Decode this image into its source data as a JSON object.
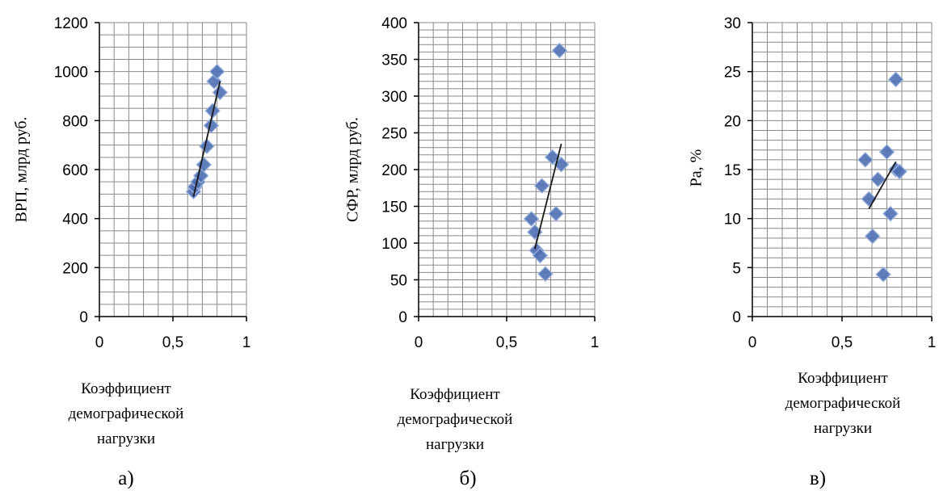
{
  "chart_data": [
    {
      "type": "scatter",
      "panel_label": "а)",
      "ylabel": "ВРП, млрд руб.",
      "xlabel": [
        "Коэффициент",
        "демографической",
        "нагрузки"
      ],
      "xlim": [
        0,
        1
      ],
      "ylim": [
        0,
        1200
      ],
      "xticks": [
        0,
        0.5,
        1
      ],
      "xtick_labels": [
        "0",
        "0,5",
        "1"
      ],
      "yticks": [
        0,
        200,
        400,
        600,
        800,
        1000,
        1200
      ],
      "ytick_labels": [
        "0",
        "200",
        "400",
        "600",
        "800",
        "1000",
        "1200"
      ],
      "grid": true,
      "points": [
        {
          "x": 0.64,
          "y": 510
        },
        {
          "x": 0.65,
          "y": 530
        },
        {
          "x": 0.67,
          "y": 550
        },
        {
          "x": 0.69,
          "y": 575
        },
        {
          "x": 0.71,
          "y": 620
        },
        {
          "x": 0.73,
          "y": 695
        },
        {
          "x": 0.76,
          "y": 780
        },
        {
          "x": 0.77,
          "y": 840
        },
        {
          "x": 0.78,
          "y": 960
        },
        {
          "x": 0.8,
          "y": 1000
        },
        {
          "x": 0.82,
          "y": 915
        }
      ],
      "trendline": [
        {
          "x": 0.64,
          "y": 490
        },
        {
          "x": 0.82,
          "y": 960
        }
      ],
      "marker_color": "#4f6fb5",
      "trend_color": "#1a1a1a"
    },
    {
      "type": "scatter",
      "panel_label": "б)",
      "ylabel": "СФР, млрд руб.",
      "xlabel": [
        "Коэффициент",
        "демографической",
        "нагрузки"
      ],
      "xlim": [
        0,
        1
      ],
      "ylim": [
        0,
        400
      ],
      "xticks": [
        0,
        0.5,
        1
      ],
      "xtick_labels": [
        "0",
        "0,5",
        "1"
      ],
      "yticks": [
        0,
        50,
        100,
        150,
        200,
        250,
        300,
        350,
        400
      ],
      "ytick_labels": [
        "0",
        "50",
        "100",
        "150",
        "200",
        "250",
        "300",
        "350",
        "400"
      ],
      "grid": true,
      "points": [
        {
          "x": 0.64,
          "y": 133
        },
        {
          "x": 0.66,
          "y": 115
        },
        {
          "x": 0.67,
          "y": 90
        },
        {
          "x": 0.69,
          "y": 83
        },
        {
          "x": 0.7,
          "y": 178
        },
        {
          "x": 0.72,
          "y": 58
        },
        {
          "x": 0.76,
          "y": 217
        },
        {
          "x": 0.78,
          "y": 140
        },
        {
          "x": 0.81,
          "y": 207
        },
        {
          "x": 0.8,
          "y": 362
        }
      ],
      "trendline": [
        {
          "x": 0.66,
          "y": 92
        },
        {
          "x": 0.81,
          "y": 235
        }
      ],
      "marker_color": "#4f6fb5",
      "trend_color": "#1a1a1a"
    },
    {
      "type": "scatter",
      "panel_label": "в)",
      "ylabel": "Ра, %",
      "xlabel": [
        "Коэффициент",
        "демографической",
        "нагрузки"
      ],
      "xlim": [
        0,
        1
      ],
      "ylim": [
        0,
        30
      ],
      "xticks": [
        0,
        0.5,
        1
      ],
      "xtick_labels": [
        "0",
        "0,5",
        "1"
      ],
      "yticks": [
        0,
        5,
        10,
        15,
        20,
        25,
        30
      ],
      "ytick_labels": [
        "0",
        "5",
        "10",
        "15",
        "20",
        "25",
        "30"
      ],
      "grid": true,
      "points": [
        {
          "x": 0.63,
          "y": 16
        },
        {
          "x": 0.65,
          "y": 12
        },
        {
          "x": 0.67,
          "y": 8.2
        },
        {
          "x": 0.7,
          "y": 14
        },
        {
          "x": 0.73,
          "y": 4.3
        },
        {
          "x": 0.75,
          "y": 16.8
        },
        {
          "x": 0.77,
          "y": 10.5
        },
        {
          "x": 0.8,
          "y": 15
        },
        {
          "x": 0.82,
          "y": 14.8
        },
        {
          "x": 0.8,
          "y": 24.2
        }
      ],
      "trendline": [
        {
          "x": 0.65,
          "y": 11
        },
        {
          "x": 0.8,
          "y": 15.8
        }
      ],
      "marker_color": "#4f6fb5",
      "trend_color": "#1a1a1a"
    }
  ]
}
